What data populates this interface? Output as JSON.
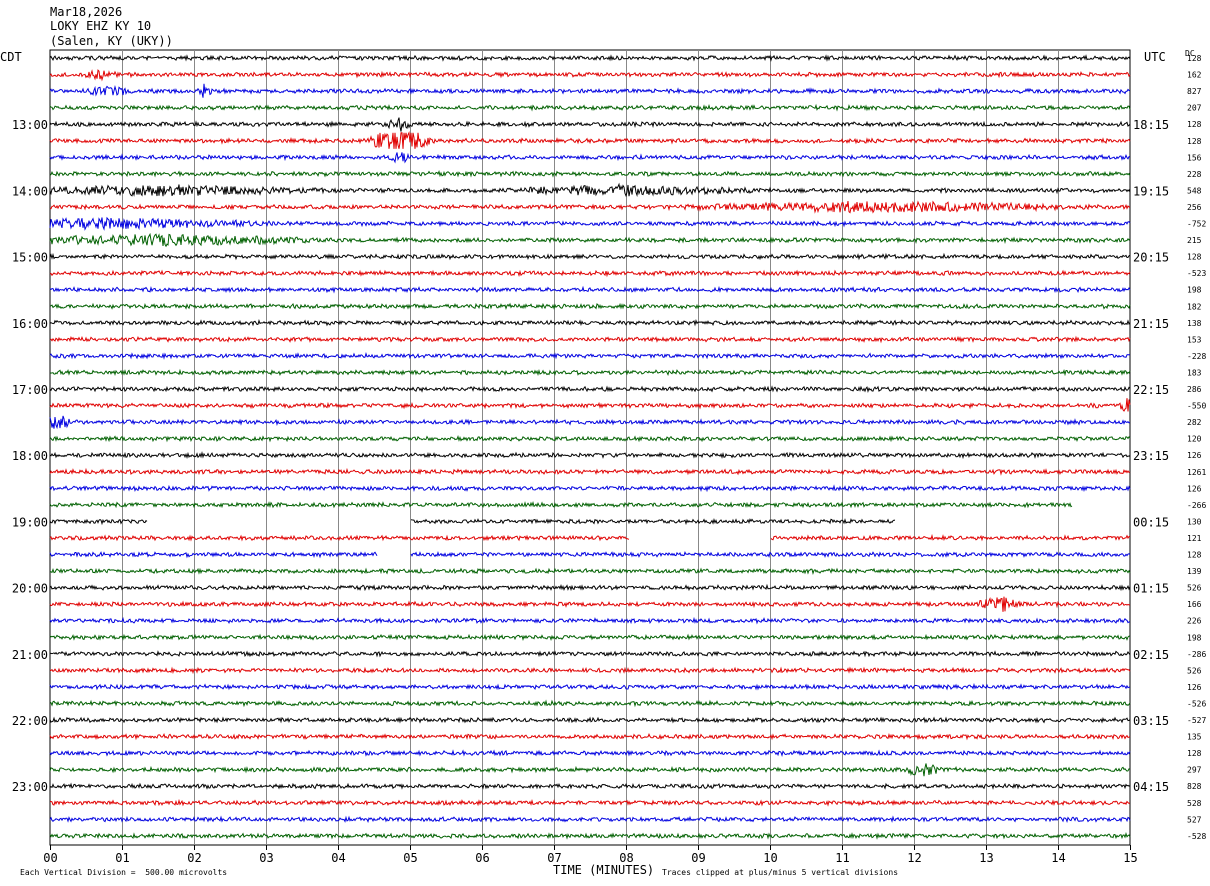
{
  "header": {
    "date": "Mar18,2026",
    "station": "LOKY EHZ KY 10",
    "location": "(Salen, KY (UKY))"
  },
  "left_zone": "CDT",
  "right_zone": "UTC",
  "dc_label": "DC",
  "footer": {
    "scale_note": "Each Vertical Division =  500.00 microvolts",
    "xlabel": "TIME (MINUTES)",
    "clip_note": "Traces clipped at plus/minus 5 vertical divisions"
  },
  "colors": {
    "cycle": [
      "#000000",
      "#e00000",
      "#0000e0",
      "#006000"
    ],
    "grid": "#888888"
  },
  "chart_data": {
    "type": "line",
    "x_ticks": [
      "00",
      "01",
      "02",
      "03",
      "04",
      "05",
      "06",
      "07",
      "08",
      "09",
      "10",
      "11",
      "12",
      "13",
      "14",
      "15"
    ],
    "xlim": [
      0,
      15
    ],
    "row_count": 48,
    "left_hour_labels": [
      {
        "row": 4,
        "text": "13:00"
      },
      {
        "row": 8,
        "text": "14:00"
      },
      {
        "row": 12,
        "text": "15:00"
      },
      {
        "row": 16,
        "text": "16:00"
      },
      {
        "row": 20,
        "text": "17:00"
      },
      {
        "row": 24,
        "text": "18:00"
      },
      {
        "row": 28,
        "text": "19:00"
      },
      {
        "row": 32,
        "text": "20:00"
      },
      {
        "row": 36,
        "text": "21:00"
      },
      {
        "row": 40,
        "text": "22:00"
      },
      {
        "row": 44,
        "text": "23:00"
      }
    ],
    "right_hour_labels": [
      {
        "row": 4,
        "text": "18:15"
      },
      {
        "row": 8,
        "text": "19:15"
      },
      {
        "row": 12,
        "text": "20:15"
      },
      {
        "row": 16,
        "text": "21:15"
      },
      {
        "row": 20,
        "text": "22:15"
      },
      {
        "row": 24,
        "text": "23:15"
      },
      {
        "row": 28,
        "text": "00:15"
      },
      {
        "row": 32,
        "text": "01:15"
      },
      {
        "row": 36,
        "text": "02:15"
      },
      {
        "row": 40,
        "text": "03:15"
      },
      {
        "row": 44,
        "text": "04:15"
      }
    ],
    "dc_offsets": [
      "128",
      "162",
      "827",
      "207",
      "128",
      "128",
      "156",
      "228",
      "548",
      "256",
      "-752",
      "215",
      "128",
      "-523",
      "198",
      "182",
      "138",
      "153",
      "-228",
      "183",
      "286",
      "-550",
      "282",
      "120",
      "126",
      "1261",
      "126",
      "-266",
      "130",
      "121",
      "128",
      "139",
      "526",
      "166",
      "226",
      "198",
      "-286",
      "526",
      "126",
      "-526",
      "-527",
      "135",
      "128",
      "297",
      "828",
      "528",
      "527",
      "-528"
    ],
    "gaps": [
      {
        "row": 27,
        "start": 14.2,
        "end": 15
      },
      {
        "row": 28,
        "start": 1.35,
        "end": 5.0
      },
      {
        "row": 28,
        "start": 11.75,
        "end": 15
      },
      {
        "row": 29,
        "start": 8.05,
        "end": 10.0
      },
      {
        "row": 30,
        "start": 4.55,
        "end": 5.0
      }
    ],
    "events": [
      {
        "row": 1,
        "minute": 0.7,
        "amp": 1.2,
        "dur": 0.3
      },
      {
        "row": 2,
        "minute": 2.15,
        "amp": 2.2,
        "dur": 0.1
      },
      {
        "row": 2,
        "minute": 0.8,
        "amp": 1.2,
        "dur": 0.4
      },
      {
        "row": 4,
        "minute": 4.85,
        "amp": 2.0,
        "dur": 0.2
      },
      {
        "row": 5,
        "minute": 4.85,
        "amp": 4.5,
        "dur": 0.5
      },
      {
        "row": 6,
        "minute": 4.85,
        "amp": 2.0,
        "dur": 0.15
      },
      {
        "row": 8,
        "minute": 1.5,
        "amp": 1.4,
        "dur": 2.5
      },
      {
        "row": 8,
        "minute": 8.0,
        "amp": 1.4,
        "dur": 2.0
      },
      {
        "row": 9,
        "minute": 11.5,
        "amp": 1.5,
        "dur": 3.0
      },
      {
        "row": 10,
        "minute": 0.8,
        "amp": 1.4,
        "dur": 2.5
      },
      {
        "row": 11,
        "minute": 1.5,
        "amp": 1.5,
        "dur": 2.5
      },
      {
        "row": 21,
        "minute": 14.95,
        "amp": 2.5,
        "dur": 0.1
      },
      {
        "row": 22,
        "minute": 0.1,
        "amp": 2.5,
        "dur": 0.2
      },
      {
        "row": 33,
        "minute": 13.2,
        "amp": 2.5,
        "dur": 0.35
      },
      {
        "row": 43,
        "minute": 12.1,
        "amp": 2.2,
        "dur": 0.3
      }
    ]
  }
}
